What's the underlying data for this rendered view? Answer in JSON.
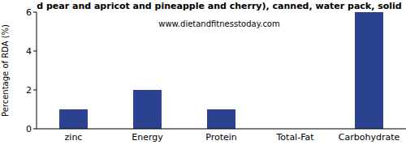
{
  "chart_data": {
    "type": "bar",
    "title": "d pear and apricot and pineapple and cherry), canned, water pack, solid",
    "subtitle": "www.dietandfitnesstoday.com",
    "y_label": "Percentage of RDA (%)",
    "categories": [
      "zinc",
      "Energy",
      "Protein",
      "Total-Fat",
      "Carbohydrate"
    ],
    "values": [
      1,
      2,
      1,
      0,
      6
    ],
    "color": "#2a428f",
    "ylim": [
      0,
      6
    ],
    "yticks": [
      0,
      2,
      4,
      6
    ],
    "grid": false
  }
}
